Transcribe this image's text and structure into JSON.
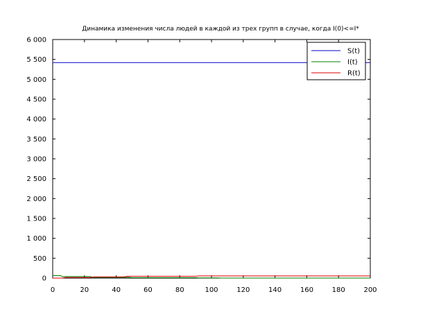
{
  "chart_data": {
    "type": "line",
    "title": "Динамика изменения числа людей в каждой из трех групп в случае, когда I(0)<=I*",
    "xlabel": "",
    "ylabel": "",
    "xlim": [
      0,
      200
    ],
    "ylim": [
      0,
      6000
    ],
    "x_ticks": [
      0,
      20,
      40,
      60,
      80,
      100,
      120,
      140,
      160,
      180,
      200
    ],
    "x_tick_labels": [
      "0",
      "20",
      "40",
      "60",
      "80",
      "100",
      "120",
      "140",
      "160",
      "180",
      "200"
    ],
    "y_ticks": [
      0,
      500,
      1000,
      1500,
      2000,
      2500,
      3000,
      3500,
      4000,
      4500,
      5000,
      5500,
      6000
    ],
    "y_tick_labels": [
      "0",
      "500",
      "1 000",
      "1 500",
      "2 000",
      "2 500",
      "3 000",
      "3 500",
      "4 000",
      "4 500",
      "5 000",
      "5 500",
      "6 000"
    ],
    "grid": false,
    "legend_position": "top-right",
    "series": [
      {
        "name": "S(t)",
        "color": "#0000cc",
        "x": [
          0,
          200
        ],
        "y": [
          5420,
          5420
        ]
      },
      {
        "name": "I(t)",
        "color": "#008000",
        "x": [
          0,
          5,
          6,
          24,
          25,
          48,
          50,
          90,
          92,
          104,
          106,
          200
        ],
        "y": [
          60,
          60,
          40,
          40,
          20,
          20,
          10,
          10,
          5,
          5,
          0,
          0
        ]
      },
      {
        "name": "R(t)",
        "color": "#dd0000",
        "x": [
          0,
          6,
          8,
          24,
          26,
          45,
          47,
          90,
          92,
          200
        ],
        "y": [
          0,
          0,
          15,
          15,
          30,
          30,
          45,
          45,
          55,
          55
        ]
      }
    ]
  }
}
